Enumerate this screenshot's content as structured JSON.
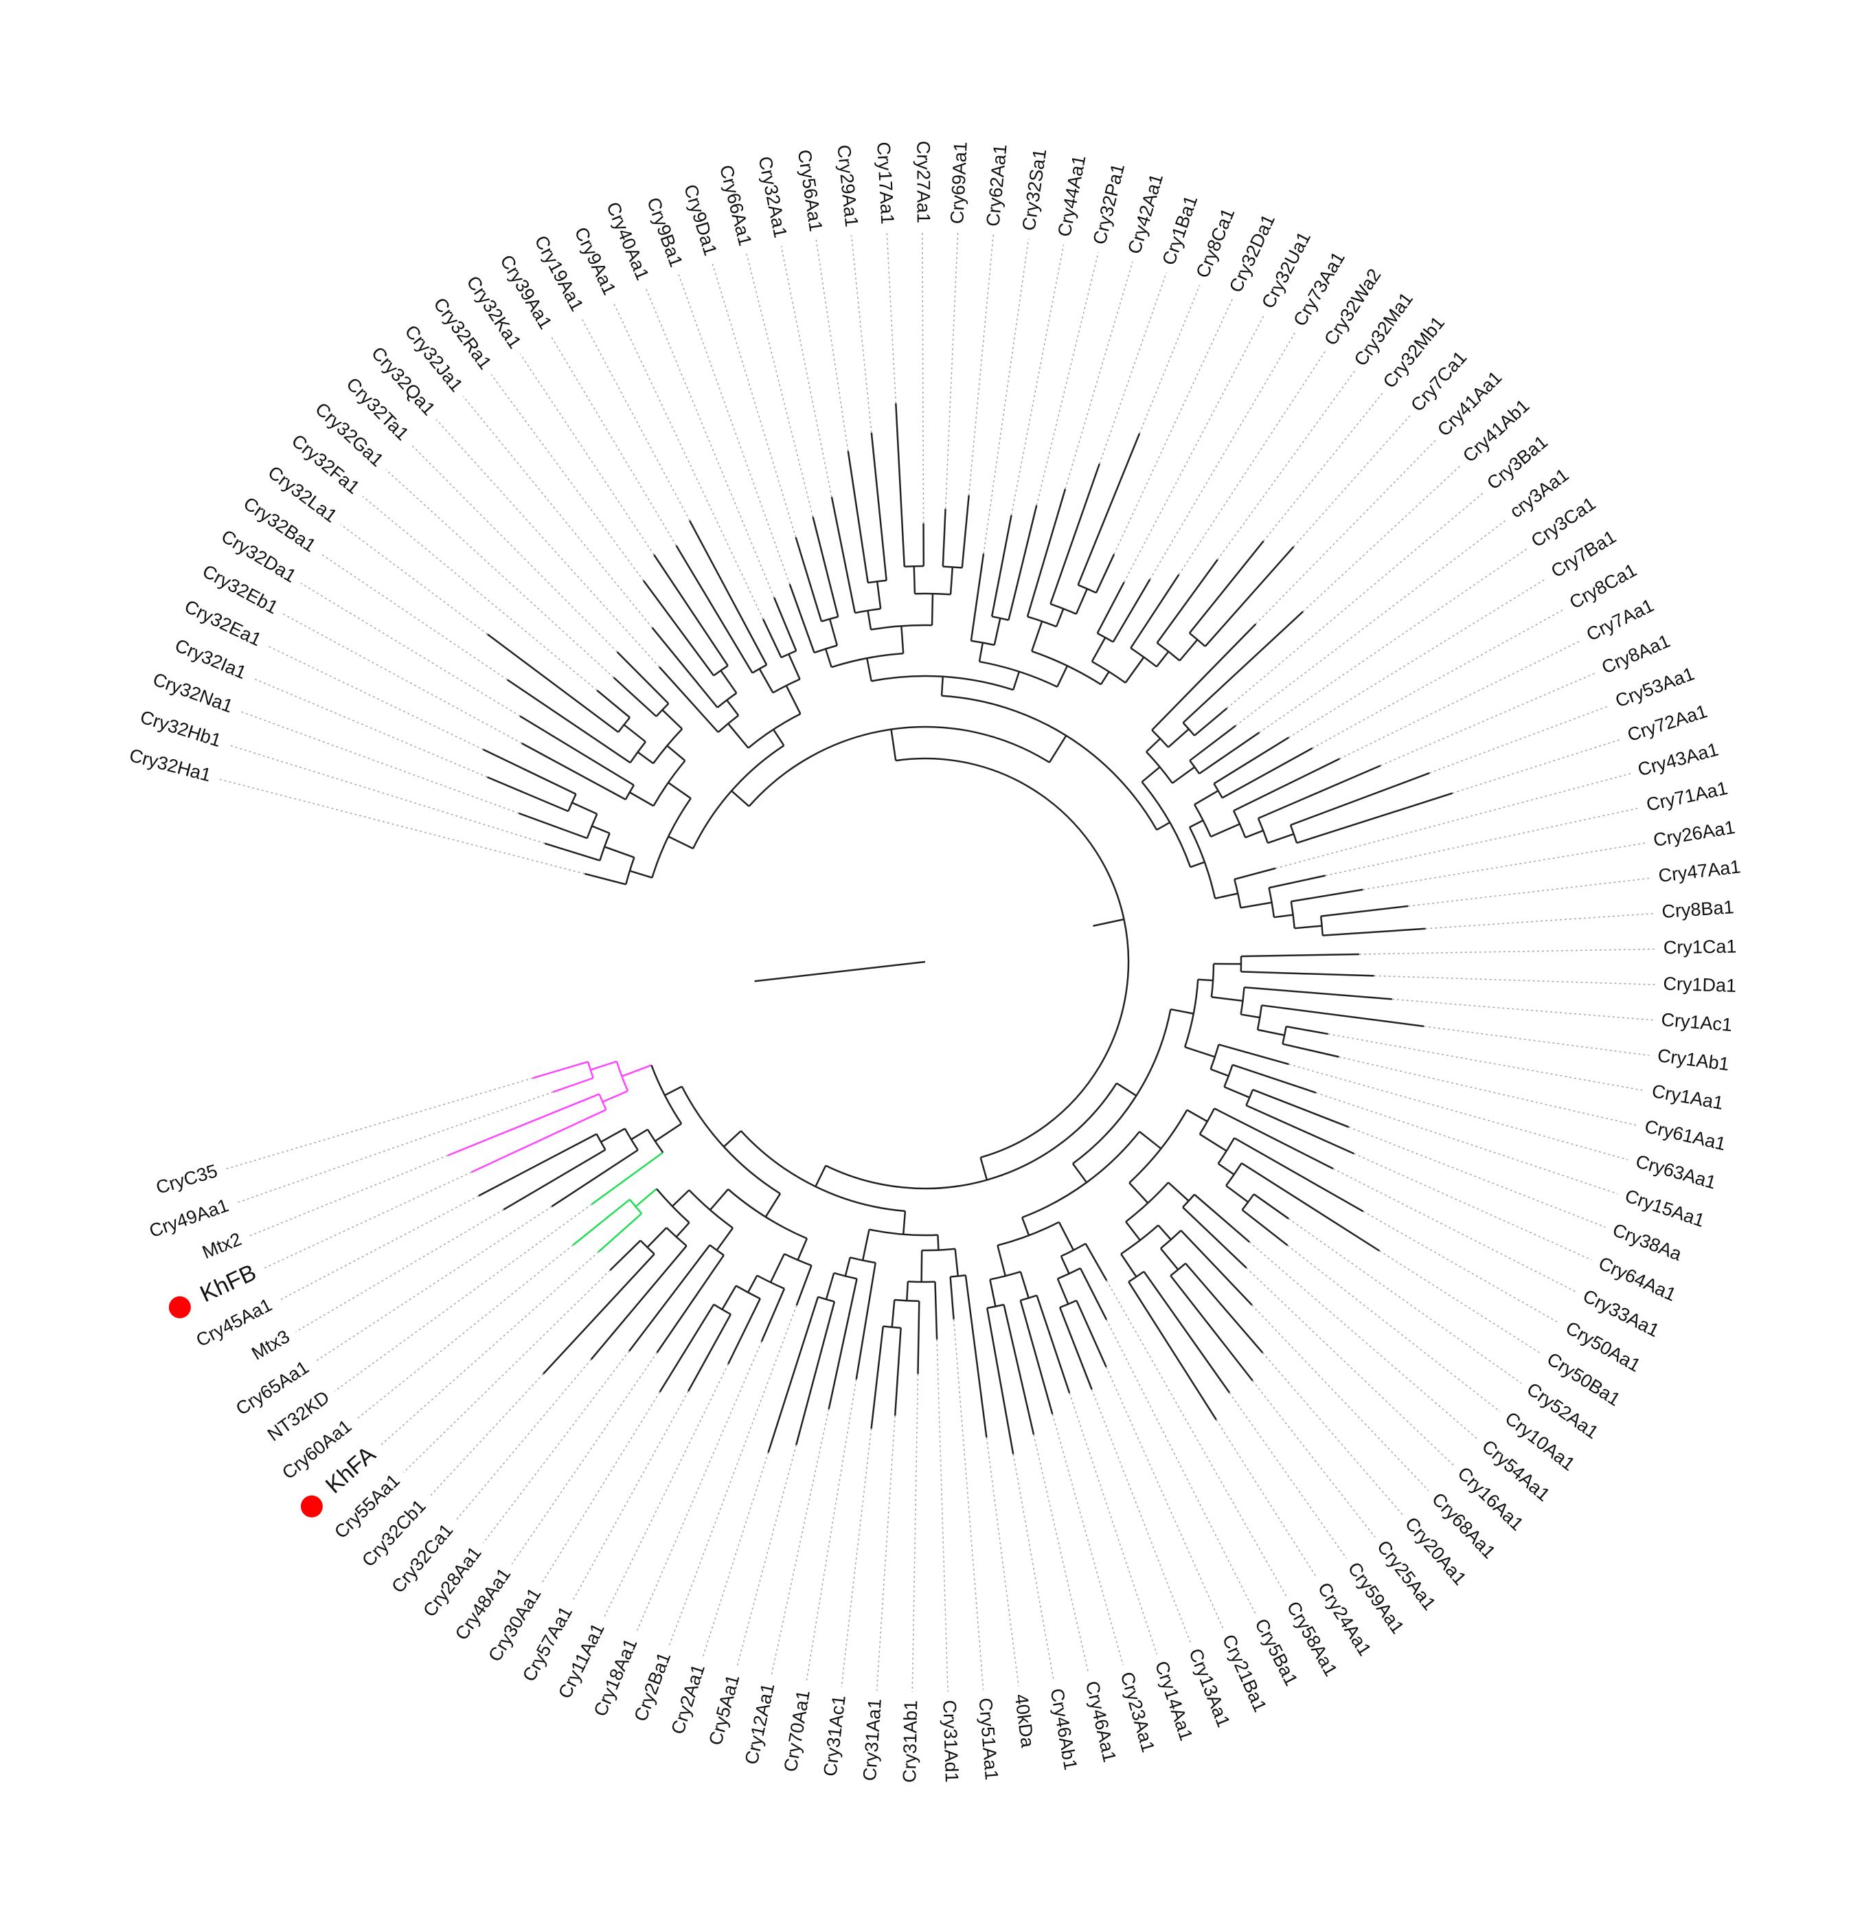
{
  "tree": {
    "leaves": [
      "Cry32Ha1",
      "Cry32Hb1",
      "Cry32Na1",
      "Cry32Ia1",
      "Cry32Ea1",
      "Cry32Eb1",
      "Cry32Da1",
      "Cry32Ba1",
      "Cry32La1",
      "Cry32Fa1",
      "Cry32Ga1",
      "Cry32Ta1",
      "Cry32Qa1",
      "Cry32Ja1",
      "Cry32Ra1",
      "Cry32Ka1",
      "Cry39Aa1",
      "Cry19Aa1",
      "Cry9Aa1",
      "Cry40Aa1",
      "Cry9Ba1",
      "Cry9Da1",
      "Cry66Aa1",
      "Cry32Aa1",
      "Cry56Aa1",
      "Cry29Aa1",
      "Cry17Aa1",
      "Cry27Aa1",
      "Cry69Aa1",
      "Cry62Aa1",
      "Cry32Sa1",
      "Cry44Aa1",
      "Cry32Pa1",
      "Cry42Aa1",
      "Cry1Ba1",
      "Cry8Ca1",
      "Cry32Da1",
      "Cry32Ua1",
      "Cry73Aa1",
      "Cry32Wa2",
      "Cry32Ma1",
      "Cry32Mb1",
      "Cry7Ca1",
      "Cry41Aa1",
      "Cry41Ab1",
      "Cry3Ba1",
      "cry3Aa1",
      "Cry3Ca1",
      "Cry7Ba1",
      "Cry8Ca1",
      "Cry7Aa1",
      "Cry8Aa1",
      "Cry53Aa1",
      "Cry72Aa1",
      "Cry43Aa1",
      "Cry71Aa1",
      "Cry26Aa1",
      "Cry47Aa1",
      "Cry8Ba1",
      "Cry1Ca1",
      "Cry1Da1",
      "Cry1Ac1",
      "Cry1Ab1",
      "Cry1Aa1",
      "Cry61Aa1",
      "Cry63Aa1",
      "Cry15Aa1",
      "Cry38Aa",
      "Cry64Aa1",
      "Cry33Aa1",
      "Cry50Aa1",
      "Cry50Ba1",
      "Cry52Aa1",
      "Cry10Aa1",
      "Cry54Aa1",
      "Cry16Aa1",
      "Cry68Aa1",
      "Cry20Aa1",
      "Cry25Aa1",
      "Cry59Aa1",
      "Cry24Aa1",
      "Cry58Aa1",
      "Cry5Ba1",
      "Cry21Ba1",
      "Cry13Aa1",
      "Cry14Aa1",
      "Cry23Aa1",
      "Cry46Aa1",
      "Cry46Ab1",
      "40kDa",
      "Cry51Aa1",
      "Cry31Ad1",
      "Cry31Ab1",
      "Cry31Aa1",
      "Cry31Ac1",
      "Cry70Aa1",
      "Cry12Aa1",
      "Cry5Aa1",
      "Cry2Aa1",
      "Cry2Ba1",
      "Cry18Aa1",
      "Cry11Aa1",
      "Cry57Aa1",
      "Cry30Aa1",
      "Cry48Aa1",
      "Cry28Aa1",
      "Cry32Ca1",
      "Cry32Cb1",
      "Cry55Aa1",
      "KhFA",
      "Cry60Aa1",
      "NT32KD",
      "Cry65Aa1",
      "Mtx3",
      "Cry45Aa1",
      "KhFB",
      "Mtx2",
      "Cry49Aa1",
      "CryC35"
    ]
  }
}
